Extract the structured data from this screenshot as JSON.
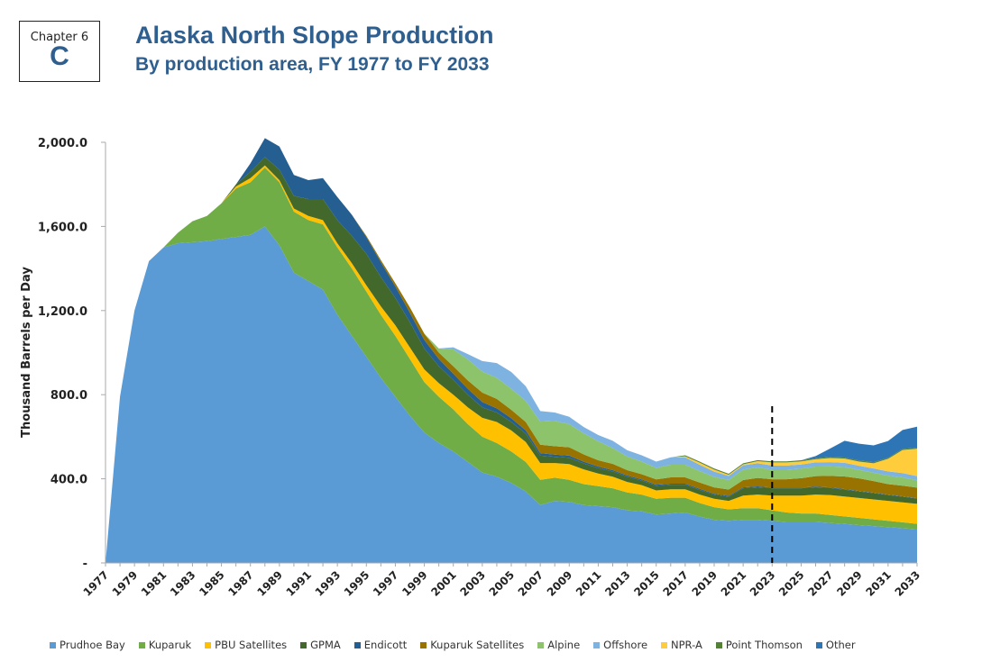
{
  "header": {
    "chapter": "Chapter 6",
    "letter": "C"
  },
  "chart_data": {
    "type": "area",
    "stacked": true,
    "title": "Alaska North Slope Production",
    "subtitle": "By production area, FY 1977 to FY 2033",
    "ylabel": "Thousand Barrels per Day",
    "xlabel": "",
    "ylim": [
      0,
      2000
    ],
    "yticks": [
      0,
      400,
      800,
      1200,
      1600,
      2000
    ],
    "ytick_labels": [
      "-",
      "400.0",
      "800.0",
      "1,200.0",
      "1,600.0",
      "2,000.0"
    ],
    "xlim": [
      1977,
      2033
    ],
    "x_tick_labels": [
      "1977",
      "1979",
      "1981",
      "1983",
      "1985",
      "1987",
      "1989",
      "1991",
      "1993",
      "1995",
      "1997",
      "1999",
      "2001",
      "2003",
      "2005",
      "2007",
      "2009",
      "2011",
      "2013",
      "2015",
      "2017",
      "2019",
      "2021",
      "2023",
      "2025",
      "2027",
      "2029",
      "2031",
      "2033"
    ],
    "grid": false,
    "legend_position": "bottom",
    "forecast_marker_year": 2023,
    "x": [
      1977,
      1978,
      1979,
      1980,
      1981,
      1982,
      1983,
      1984,
      1985,
      1986,
      1987,
      1988,
      1989,
      1990,
      1991,
      1992,
      1993,
      1994,
      1995,
      1996,
      1997,
      1998,
      1999,
      2000,
      2001,
      2002,
      2003,
      2004,
      2005,
      2006,
      2007,
      2008,
      2009,
      2010,
      2011,
      2012,
      2013,
      2014,
      2015,
      2016,
      2017,
      2018,
      2019,
      2020,
      2021,
      2022,
      2023,
      2024,
      2025,
      2026,
      2027,
      2028,
      2029,
      2030,
      2031,
      2032,
      2033
    ],
    "series": [
      {
        "name": "Prudhoe Bay",
        "color": "#5b9bd5",
        "values": [
          0,
          790,
          1200,
          1435,
          1500,
          1520,
          1525,
          1530,
          1540,
          1550,
          1560,
          1600,
          1510,
          1380,
          1340,
          1300,
          1180,
          1080,
          980,
          880,
          790,
          700,
          620,
          570,
          530,
          480,
          430,
          410,
          380,
          340,
          275,
          295,
          290,
          275,
          270,
          265,
          250,
          245,
          230,
          235,
          240,
          220,
          205,
          200,
          205,
          205,
          200,
          195,
          195,
          195,
          190,
          185,
          180,
          175,
          170,
          165,
          160
        ]
      },
      {
        "name": "Kuparuk",
        "color": "#70ad47",
        "values": [
          0,
          0,
          0,
          0,
          0,
          50,
          100,
          120,
          170,
          230,
          250,
          280,
          300,
          290,
          290,
          310,
          320,
          320,
          310,
          300,
          290,
          270,
          240,
          220,
          200,
          180,
          170,
          160,
          150,
          140,
          120,
          110,
          105,
          100,
          95,
          90,
          85,
          80,
          75,
          75,
          70,
          65,
          60,
          55,
          55,
          55,
          50,
          45,
          40,
          40,
          38,
          36,
          34,
          32,
          30,
          28,
          26
        ]
      },
      {
        "name": "PBU Satellites",
        "color": "#ffc000",
        "values": [
          0,
          0,
          0,
          0,
          0,
          0,
          0,
          0,
          0,
          10,
          20,
          10,
          10,
          15,
          20,
          20,
          20,
          25,
          30,
          40,
          50,
          55,
          60,
          65,
          70,
          80,
          90,
          100,
          100,
          95,
          80,
          70,
          75,
          70,
          60,
          55,
          50,
          45,
          40,
          40,
          40,
          40,
          40,
          40,
          60,
          65,
          70,
          80,
          85,
          90,
          95,
          95,
          95,
          95,
          95,
          95,
          95
        ]
      },
      {
        "name": "GPMA",
        "color": "#43682b",
        "values": [
          0,
          0,
          0,
          0,
          0,
          0,
          0,
          0,
          0,
          10,
          30,
          40,
          50,
          60,
          80,
          100,
          110,
          130,
          150,
          140,
          130,
          120,
          100,
          80,
          70,
          60,
          50,
          45,
          40,
          40,
          35,
          30,
          30,
          28,
          26,
          25,
          25,
          22,
          22,
          22,
          22,
          22,
          20,
          20,
          35,
          35,
          35,
          35,
          35,
          35,
          33,
          32,
          31,
          30,
          28,
          27,
          25
        ]
      },
      {
        "name": "Endicott",
        "color": "#255e91",
        "values": [
          0,
          0,
          0,
          0,
          0,
          0,
          0,
          0,
          0,
          0,
          40,
          90,
          110,
          100,
          90,
          100,
          110,
          100,
          80,
          70,
          55,
          45,
          40,
          35,
          30,
          28,
          25,
          20,
          18,
          15,
          12,
          10,
          10,
          8,
          7,
          6,
          6,
          5,
          5,
          5,
          5,
          5,
          4,
          4,
          4,
          4,
          3,
          3,
          3,
          3,
          3,
          3,
          2,
          2,
          2,
          2,
          2
        ]
      },
      {
        "name": "Kuparuk Satellites",
        "color": "#997300",
        "values": [
          0,
          0,
          0,
          0,
          0,
          0,
          0,
          0,
          0,
          0,
          0,
          0,
          0,
          0,
          0,
          0,
          0,
          0,
          5,
          10,
          15,
          25,
          30,
          30,
          35,
          40,
          45,
          45,
          40,
          40,
          40,
          40,
          40,
          35,
          30,
          30,
          25,
          25,
          25,
          30,
          30,
          30,
          30,
          30,
          35,
          40,
          40,
          40,
          45,
          50,
          55,
          60,
          60,
          55,
          50,
          50,
          50
        ]
      },
      {
        "name": "Alpine",
        "color": "#8dc36a",
        "values": [
          0,
          0,
          0,
          0,
          0,
          0,
          0,
          0,
          0,
          0,
          0,
          0,
          0,
          0,
          0,
          0,
          0,
          0,
          0,
          0,
          0,
          0,
          0,
          20,
          80,
          100,
          100,
          100,
          100,
          100,
          110,
          120,
          110,
          100,
          90,
          75,
          65,
          60,
          55,
          60,
          60,
          55,
          50,
          45,
          50,
          50,
          45,
          45,
          45,
          45,
          45,
          45,
          40,
          40,
          40,
          40,
          35
        ]
      },
      {
        "name": "Offshore",
        "color": "#7eb2e0",
        "values": [
          0,
          0,
          0,
          0,
          0,
          0,
          0,
          0,
          0,
          0,
          0,
          0,
          0,
          0,
          0,
          0,
          0,
          0,
          0,
          0,
          0,
          0,
          0,
          0,
          10,
          25,
          50,
          70,
          80,
          70,
          50,
          40,
          35,
          30,
          30,
          35,
          30,
          30,
          30,
          35,
          35,
          30,
          25,
          20,
          20,
          20,
          20,
          20,
          20,
          20,
          20,
          20,
          20,
          20,
          20,
          20,
          20
        ]
      },
      {
        "name": "NPR-A",
        "color": "#ffcd3c",
        "values": [
          0,
          0,
          0,
          0,
          0,
          0,
          0,
          0,
          0,
          0,
          0,
          0,
          0,
          0,
          0,
          0,
          0,
          0,
          0,
          0,
          0,
          0,
          0,
          0,
          0,
          0,
          0,
          0,
          0,
          0,
          0,
          0,
          0,
          0,
          0,
          0,
          0,
          0,
          0,
          0,
          5,
          10,
          10,
          5,
          5,
          10,
          15,
          15,
          15,
          15,
          20,
          20,
          20,
          25,
          60,
          110,
          130
        ]
      },
      {
        "name": "Point Thomson",
        "color": "#548235",
        "values": [
          0,
          0,
          0,
          0,
          0,
          0,
          0,
          0,
          0,
          0,
          0,
          0,
          0,
          0,
          0,
          0,
          0,
          0,
          0,
          0,
          0,
          0,
          0,
          0,
          0,
          0,
          0,
          0,
          0,
          0,
          0,
          0,
          0,
          0,
          0,
          0,
          0,
          0,
          0,
          0,
          5,
          5,
          5,
          5,
          5,
          5,
          5,
          5,
          5,
          5,
          5,
          5,
          5,
          5,
          5,
          5,
          5
        ]
      },
      {
        "name": "Other",
        "color": "#2e75b6",
        "values": [
          0,
          0,
          0,
          0,
          0,
          0,
          0,
          0,
          0,
          0,
          0,
          0,
          0,
          0,
          0,
          0,
          0,
          0,
          0,
          0,
          0,
          0,
          0,
          0,
          0,
          0,
          0,
          0,
          0,
          0,
          0,
          0,
          0,
          0,
          0,
          0,
          0,
          0,
          0,
          0,
          0,
          0,
          0,
          0,
          0,
          0,
          0,
          0,
          0,
          10,
          40,
          80,
          80,
          80,
          80,
          90,
          100
        ]
      }
    ]
  }
}
